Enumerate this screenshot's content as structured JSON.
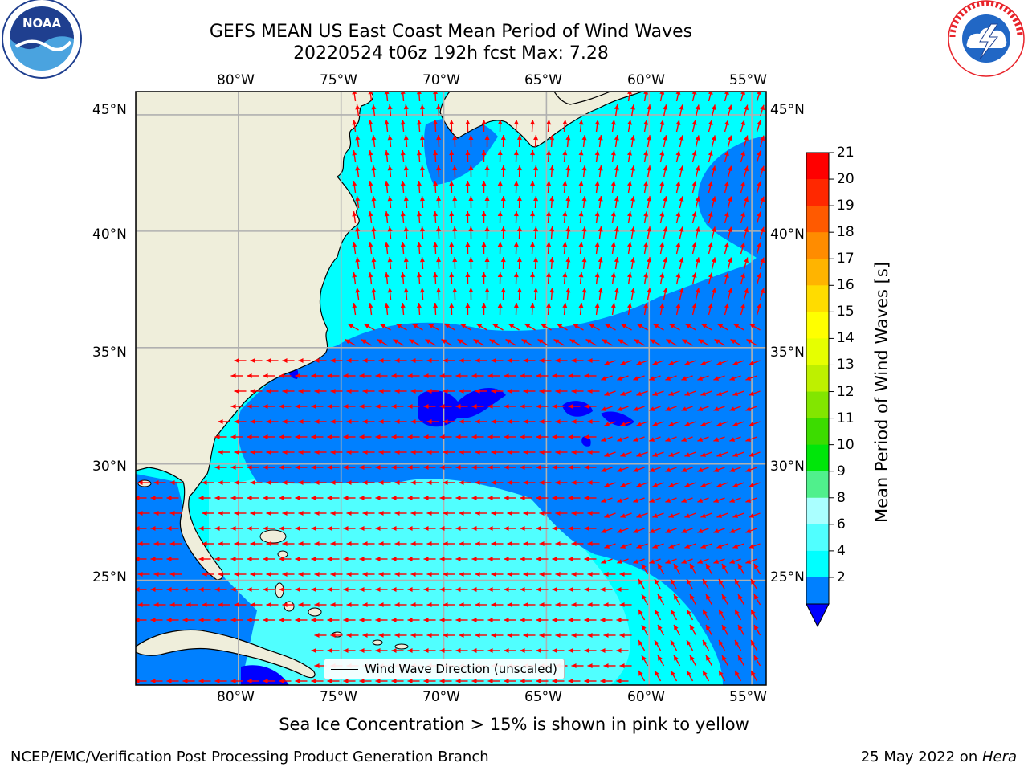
{
  "header": {
    "title_line1": "GEFS MEAN US East Coast Mean Period of Wind Waves",
    "title_line2": "20220524 t06z 192h fcst   Max: 7.28"
  },
  "logos": {
    "noaa": {
      "text": "NOAA",
      "ring_text": "NATIONAL OCEANIC AND ATMOSPHERIC ADMINISTRATION · U.S. DEPARTMENT OF COMMERCE",
      "colors": [
        "#1f3f8f",
        "#4aa3df"
      ]
    },
    "nws": {
      "ring_text": "NATIONAL WEATHER SERVICE",
      "colors": [
        "#e8232a",
        "#2167c5"
      ]
    }
  },
  "map": {
    "lon_range": [
      -85,
      -54.3
    ],
    "lat_range": [
      20.5,
      46
    ],
    "lon_ticks": [
      "80°W",
      "75°W",
      "70°W",
      "65°W",
      "60°W",
      "55°W"
    ],
    "lat_ticks": [
      "45°N",
      "40°N",
      "35°N",
      "30°N",
      "25°N"
    ],
    "land_color": "#efeedb",
    "grid_color": "#b0b0b0",
    "arrow_color": "#ff0000",
    "legend_label": "Wind Wave Direction (unscaled)"
  },
  "colorbar": {
    "title": "Mean Period of Wind Waves [s]",
    "levels": [
      "21",
      "20",
      "19",
      "18",
      "17",
      "16",
      "15",
      "14",
      "13",
      "12",
      "11",
      "10",
      "9",
      "8",
      "6",
      "4",
      "2"
    ],
    "colors": [
      "#ff0000",
      "#ff2800",
      "#ff5a00",
      "#ff8c00",
      "#ffb400",
      "#ffdc00",
      "#ffff00",
      "#e6ff00",
      "#bef000",
      "#82e600",
      "#3cdc00",
      "#00e60a",
      "#50f08c",
      "#aaffff",
      "#50ffff",
      "#00ffff",
      "#0080ff"
    ],
    "under_color": "#0000ff"
  },
  "footer": {
    "note": "Sea Ice Concentration > 15% is shown in pink to yellow",
    "left": "NCEP/EMC/Verification Post Processing Product Generation Branch",
    "right_prefix": "25 May 2022 on ",
    "right_italic": "Hera"
  }
}
